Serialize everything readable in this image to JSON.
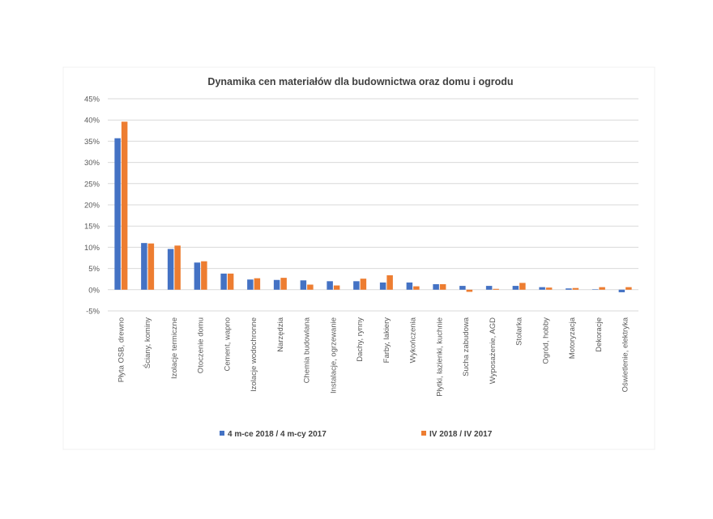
{
  "chart_data": {
    "type": "bar",
    "title": "Dynamika cen materiałów dla budownictwa oraz domu i ogrodu",
    "xlabel": "",
    "ylabel": "",
    "ylim": [
      -5,
      45
    ],
    "yticks": [
      -5,
      0,
      5,
      10,
      15,
      20,
      25,
      30,
      35,
      40,
      45
    ],
    "ytick_labels": [
      "-5%",
      "0%",
      "5%",
      "10%",
      "15%",
      "20%",
      "25%",
      "30%",
      "35%",
      "40%",
      "45%"
    ],
    "grid": true,
    "legend_position": "bottom",
    "categories": [
      "Płyta OSB, drewno",
      "Ściany, kominy",
      "Izolacje termiczne",
      "Otoczenie domu",
      "Cement, wapno",
      "Izolacje wodochronne",
      "Narzędzia",
      "Chemia budowlana",
      "Instalacje, ogrzewanie",
      "Dachy, rynny",
      "Farby, lakiery",
      "Wykończenia",
      "Płytki, łazienki, kuchnie",
      "Sucha zabudowa",
      "Wyposażenie, AGD",
      "Stolarka",
      "Ogród, hobby",
      "Motoryzacja",
      "Dekoracje",
      "Oświetlenie, elektryka"
    ],
    "series": [
      {
        "name": "4 m-ce 2018 / 4 m-cy 2017",
        "color": "#4472C4",
        "values": [
          35.7,
          11.0,
          9.6,
          6.4,
          3.8,
          2.4,
          2.3,
          2.2,
          2.0,
          2.0,
          1.7,
          1.7,
          1.3,
          0.9,
          0.9,
          0.9,
          0.6,
          0.3,
          0.1,
          -0.6
        ]
      },
      {
        "name": "IV 2018 / IV 2017",
        "color": "#ED7D31",
        "values": [
          39.6,
          10.9,
          10.4,
          6.7,
          3.8,
          2.7,
          2.8,
          1.2,
          1.0,
          2.6,
          3.4,
          0.8,
          1.3,
          -0.5,
          0.2,
          1.6,
          0.5,
          0.4,
          0.6,
          0.6
        ]
      }
    ]
  }
}
